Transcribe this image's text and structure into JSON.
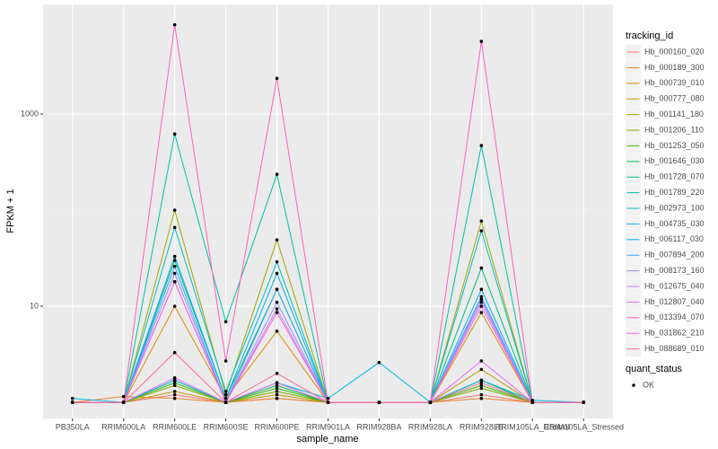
{
  "chart_data": {
    "type": "line",
    "x_label": "sample_name",
    "y_label": "FPKM + 1",
    "legend_title": "tracking_id",
    "point_legend_title": "quant_status",
    "point_legend_label": "OK",
    "log_y": true,
    "grid": true,
    "categories": [
      "PB350LA",
      "RRIM600LA",
      "RRIM600LE",
      "RRIM600SE",
      "RRIM600PE",
      "RRIM901LA",
      "RRIM928BA",
      "RRIM928LA",
      "RRIM928LE",
      "RRIM105LA_Control",
      "RRIM105LA_Stressed"
    ],
    "ylim": [
      0.68,
      13800
    ],
    "yticks": [
      10,
      1000
    ],
    "series": [
      {
        "name": "Hb_000160_020",
        "color": "#F8766D",
        "values": [
          1,
          1,
          1.2,
          1,
          1.1,
          1,
          1,
          1,
          1.2,
          1,
          1
        ]
      },
      {
        "name": "Hb_000189_300",
        "color": "#EA8331",
        "values": [
          1,
          1.15,
          1.1,
          1,
          1.1,
          1,
          1,
          1,
          1.1,
          1,
          1
        ]
      },
      {
        "name": "Hb_000739_010",
        "color": "#D89000",
        "values": [
          1,
          1,
          10,
          1.1,
          5.5,
          1,
          1,
          1,
          8.6,
          1,
          1
        ]
      },
      {
        "name": "Hb_000777_080",
        "color": "#C09B00",
        "values": [
          1,
          1,
          1.3,
          1,
          1.2,
          1,
          1,
          1,
          2.2,
          1,
          1
        ]
      },
      {
        "name": "Hb_001141_180",
        "color": "#A3A500",
        "values": [
          1,
          1,
          100,
          1.2,
          49,
          1,
          1,
          1,
          77,
          1,
          1
        ]
      },
      {
        "name": "Hb_001206_110",
        "color": "#7CAE00",
        "values": [
          1,
          1,
          1.5,
          1,
          1.3,
          1,
          1,
          1,
          1.4,
          1,
          1
        ]
      },
      {
        "name": "Hb_001253_050",
        "color": "#39B600",
        "values": [
          1,
          1,
          1.6,
          1,
          1.4,
          1,
          1,
          1,
          1.5,
          1,
          1
        ]
      },
      {
        "name": "Hb_001646_030",
        "color": "#00BB4E",
        "values": [
          1,
          1,
          1.7,
          1,
          1.5,
          1,
          1,
          1,
          1.7,
          1,
          1
        ]
      },
      {
        "name": "Hb_001728_070",
        "color": "#00BF7D",
        "values": [
          1,
          1,
          30,
          1.1,
          15,
          1,
          1,
          1,
          25,
          1,
          1
        ]
      },
      {
        "name": "Hb_001789_220",
        "color": "#00C1A3",
        "values": [
          1,
          1,
          620,
          6.9,
          236,
          1,
          1,
          1,
          470,
          1,
          1
        ]
      },
      {
        "name": "Hb_002973_100",
        "color": "#00BFC4",
        "values": [
          1,
          1,
          66,
          1.3,
          29,
          1,
          1,
          1,
          61,
          1,
          1
        ]
      },
      {
        "name": "Hb_004735_030",
        "color": "#00BAE0",
        "values": [
          1.1,
          1,
          1.7,
          1,
          1.6,
          1.1,
          2.6,
          1,
          1.7,
          1.05,
          1
        ]
      },
      {
        "name": "Hb_006117_030",
        "color": "#00B0F6",
        "values": [
          1,
          1,
          33,
          1.1,
          22,
          1,
          1,
          1,
          15,
          1,
          1
        ]
      },
      {
        "name": "Hb_007894_200",
        "color": "#35A2FF",
        "values": [
          1,
          1,
          26,
          1,
          15,
          1,
          1,
          1,
          12.6,
          1,
          1
        ]
      },
      {
        "name": "Hb_008173_160",
        "color": "#9590FF",
        "values": [
          1,
          1,
          22,
          1,
          11,
          1,
          1,
          1,
          11.8,
          1,
          1
        ]
      },
      {
        "name": "Hb_012675_040",
        "color": "#C77CFF",
        "values": [
          1,
          1,
          18,
          1,
          9.4,
          1,
          1,
          1,
          11,
          1,
          1
        ]
      },
      {
        "name": "Hb_012807_040",
        "color": "#E76BF3",
        "values": [
          1,
          1,
          1.8,
          1,
          1.6,
          1,
          1,
          1,
          2.7,
          1,
          1
        ]
      },
      {
        "name": "Hb_013394_070",
        "color": "#FF62BC",
        "values": [
          1,
          1,
          8500,
          2.7,
          2350,
          1,
          1,
          1,
          5700,
          1,
          1
        ]
      },
      {
        "name": "Hb_031862_210",
        "color": "#FA62DB",
        "values": [
          1,
          1,
          18,
          1,
          8.6,
          1,
          1,
          1,
          10,
          1,
          1
        ]
      },
      {
        "name": "Hb_088689_010",
        "color": "#FF6C91",
        "values": [
          1,
          1,
          3.3,
          1,
          2,
          1,
          1,
          1,
          1.6,
          1,
          1
        ]
      }
    ]
  }
}
